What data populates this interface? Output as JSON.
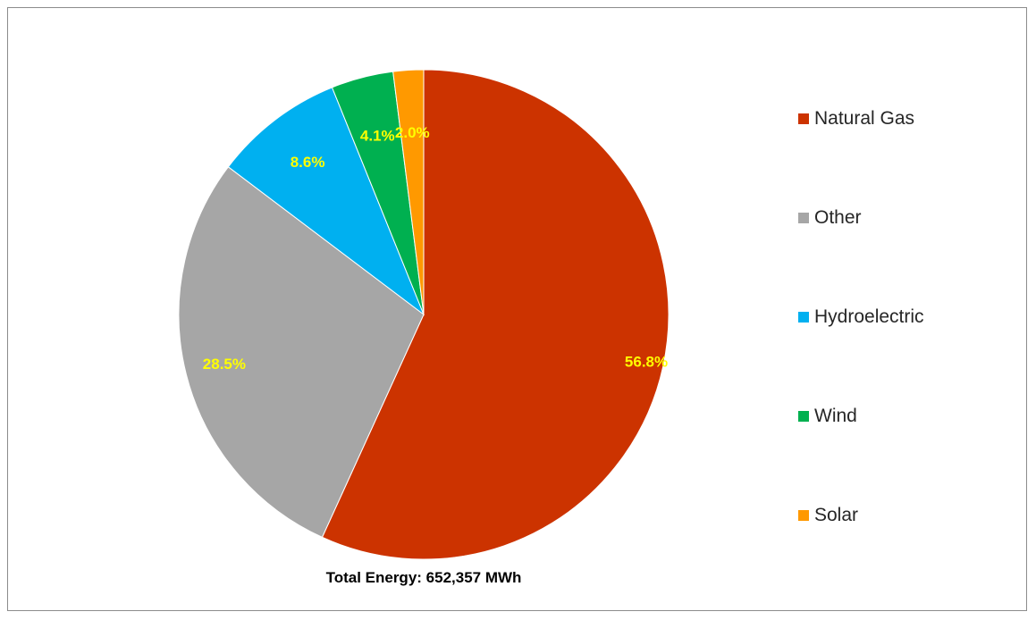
{
  "chart_data": {
    "type": "pie",
    "categories": [
      "Natural Gas",
      "Other",
      "Hydroelectric",
      "Wind",
      "Solar"
    ],
    "values": [
      56.8,
      28.5,
      8.6,
      4.1,
      2.0
    ],
    "value_labels": [
      "56.8%",
      "28.5%",
      "8.6%",
      "4.1%",
      "2.0%"
    ],
    "colors": [
      "#cc3300",
      "#a6a6a6",
      "#00b0f0",
      "#00b050",
      "#ff9900"
    ],
    "label_color": "#ffff00",
    "start_angle_deg": 0,
    "direction": "clockwise",
    "legend_position": "right",
    "title": "",
    "annotation": "Total Energy: 652,357 MWh"
  }
}
